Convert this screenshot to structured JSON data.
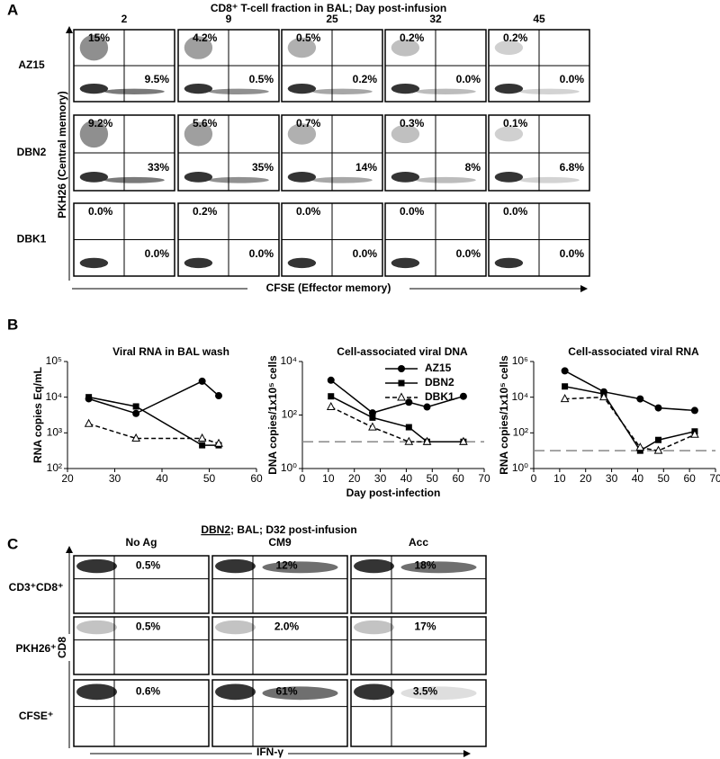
{
  "panel_a": {
    "letter": "A",
    "title": "CD8⁺ T-cell fraction in BAL; Day post-infusion",
    "days": [
      "2",
      "9",
      "25",
      "32",
      "45"
    ],
    "y_label": "PKH26 (Central memory)",
    "x_label": "CFSE (Effector memory)",
    "rows": [
      {
        "name": "AZ15",
        "upper_left": [
          "15%",
          "4.2%",
          "0.5%",
          "0.2%",
          "0.2%"
        ],
        "lower_right": [
          "9.5%",
          "0.5%",
          "0.2%",
          "0.0%",
          "0.0%"
        ]
      },
      {
        "name": "DBN2",
        "upper_left": [
          "9.2%",
          "5.6%",
          "0.7%",
          "0.3%",
          "0.1%"
        ],
        "lower_right": [
          "33%",
          "35%",
          "14%",
          "8%",
          "6.8%"
        ]
      },
      {
        "name": "DBK1",
        "upper_left": [
          "0.0%",
          "0.2%",
          "0.0%",
          "0.0%",
          "0.0%"
        ],
        "lower_right": [
          "0.0%",
          "0.0%",
          "0.0%",
          "0.0%",
          "0.0%"
        ]
      }
    ]
  },
  "panel_b": {
    "letter": "B"
  },
  "chart_data": [
    {
      "type": "line",
      "title": "Viral RNA in BAL wash",
      "y_label": "RNA copies Eq/mL",
      "log_y": true,
      "xlim": [
        20,
        60
      ],
      "xticks": [
        20,
        30,
        40,
        50,
        60
      ],
      "ylim": [
        100,
        100000
      ],
      "yticks": [
        {
          "value": 100,
          "label": "10²"
        },
        {
          "value": 1000,
          "label": "10³"
        },
        {
          "value": 10000,
          "label": "10⁴"
        },
        {
          "value": 100000,
          "label": "10⁵"
        }
      ],
      "series": [
        {
          "color": "#000000",
          "marker": "circle",
          "dashed": false,
          "x": [
            24.5,
            34.5,
            48.5,
            52
          ],
          "values": [
            9000,
            3500,
            28000,
            11000
          ]
        },
        {
          "color": "#000000",
          "marker": "square",
          "dashed": false,
          "x": [
            24.5,
            34.5,
            48.5,
            52
          ],
          "values": [
            10000,
            5500,
            450,
            450
          ]
        },
        {
          "color": "#000000",
          "marker": "triangle-open",
          "dashed": true,
          "x": [
            24.5,
            34.5,
            48.5,
            52
          ],
          "values": [
            1800,
            700,
            700,
            500
          ]
        }
      ]
    },
    {
      "type": "line",
      "title": "Cell-associated viral DNA",
      "y_label": "DNA copies/1x10⁵ cells",
      "x_label": "Day post-infection",
      "log_y": true,
      "xlim": [
        0,
        70
      ],
      "xticks": [
        0,
        10,
        20,
        30,
        40,
        50,
        60,
        70
      ],
      "ylim": [
        1,
        10000
      ],
      "yticks": [
        {
          "value": 1,
          "label": "10⁰"
        },
        {
          "value": 100,
          "label": "10²"
        },
        {
          "value": 10000,
          "label": "10⁴"
        }
      ],
      "threshold": 10,
      "legend": "top-right",
      "series": [
        {
          "name": "AZ15",
          "color": "#000000",
          "marker": "circle",
          "dashed": false,
          "x": [
            11,
            27,
            41,
            48,
            62
          ],
          "values": [
            2000,
            120,
            300,
            200,
            500
          ]
        },
        {
          "name": "DBN2",
          "color": "#000000",
          "marker": "square",
          "dashed": false,
          "x": [
            11,
            27,
            41,
            48,
            62
          ],
          "values": [
            500,
            80,
            35,
            10,
            10
          ]
        },
        {
          "name": "DBK1",
          "color": "#000000",
          "marker": "triangle-open",
          "dashed": true,
          "x": [
            11,
            27,
            41,
            48,
            62
          ],
          "values": [
            200,
            35,
            10,
            10,
            10
          ]
        }
      ]
    },
    {
      "type": "line",
      "title": "Cell-associated viral RNA",
      "y_label": "RNA copies/1x10⁵ cells",
      "log_y": true,
      "xlim": [
        0,
        70
      ],
      "xticks": [
        0,
        10,
        20,
        30,
        40,
        50,
        60,
        70
      ],
      "ylim": [
        1,
        1000000
      ],
      "yticks": [
        {
          "value": 1,
          "label": "10⁰"
        },
        {
          "value": 100,
          "label": "10²"
        },
        {
          "value": 10000,
          "label": "10⁴"
        },
        {
          "value": 1000000,
          "label": "10⁶"
        }
      ],
      "threshold": 10,
      "series": [
        {
          "color": "#000000",
          "marker": "circle",
          "dashed": false,
          "x": [
            12,
            27,
            41,
            48,
            62
          ],
          "values": [
            300000,
            20000,
            8000,
            2500,
            1800
          ]
        },
        {
          "color": "#000000",
          "marker": "square",
          "dashed": false,
          "x": [
            12,
            27,
            41,
            48,
            62
          ],
          "values": [
            40000,
            15000,
            10,
            40,
            120
          ]
        },
        {
          "color": "#000000",
          "marker": "triangle-open",
          "dashed": true,
          "x": [
            12,
            27,
            41,
            48,
            62
          ],
          "values": [
            8000,
            10000,
            15,
            10,
            80
          ]
        }
      ]
    }
  ],
  "panel_c": {
    "letter": "C",
    "title_underlined": "DBN2",
    "title_rest": "; BAL; D32 post-infusion",
    "columns": [
      "No Ag",
      "CM9",
      "Acc"
    ],
    "y_label": "CD8",
    "x_label": "IFN-γ",
    "rows": [
      {
        "name": "CD3⁺CD8⁺",
        "values": [
          "0.5%",
          "12%",
          "18%"
        ]
      },
      {
        "name": "PKH26⁺",
        "values": [
          "0.5%",
          "2.0%",
          "17%"
        ]
      },
      {
        "name": "CFSE⁺",
        "values": [
          "0.6%",
          "61%",
          "3.5%"
        ]
      }
    ]
  }
}
